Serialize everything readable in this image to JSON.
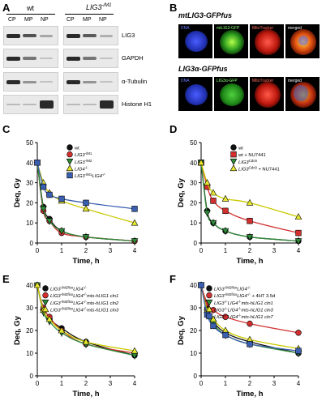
{
  "panelA": {
    "letter": "A",
    "group1": "wt",
    "group2": "LIG3",
    "group2_sup": "-/M1",
    "lanes": [
      "CP",
      "MP",
      "NP"
    ],
    "rows": [
      "LIG3",
      "GAPDH",
      "α-Tubulin",
      "Histone H1"
    ]
  },
  "panelB": {
    "letter": "B",
    "row1_title": "mtLIG3-GFPfus",
    "row2_title": "LIG3α-GFPfus",
    "row1_labels": [
      "DNA",
      "mtLIG3-GFP",
      "MitoTracker",
      "merged"
    ],
    "row2_labels": [
      "DNA",
      "LIG3α-GFP",
      "MitoTracker",
      "merged"
    ]
  },
  "axis_y_label": "Deq, Gy",
  "axis_x_label": "Time, h",
  "chart_data": [
    {
      "type": "line",
      "panel": "C",
      "ylim": [
        0,
        50
      ],
      "xlim": [
        0,
        4
      ],
      "xticks": [
        0,
        1,
        2,
        3,
        4
      ],
      "yticks": [
        0,
        10,
        20,
        30,
        40,
        50
      ],
      "series": [
        {
          "name": "wt",
          "color": "#111111",
          "marker": "circle",
          "x": [
            0,
            0.25,
            0.5,
            1,
            2,
            4
          ],
          "y": [
            40,
            18,
            12,
            6,
            3,
            1
          ]
        },
        {
          "name": "LIG3-/M1",
          "color": "#d32f2f",
          "marker": "circle",
          "x": [
            0,
            0.25,
            0.5,
            1,
            2,
            4
          ],
          "y": [
            40,
            16,
            11,
            5,
            3,
            1
          ]
        },
        {
          "name": "LIG3-/M2",
          "color": "#2e8b3a",
          "marker": "triangle-down",
          "x": [
            0,
            0.25,
            0.5,
            1,
            2,
            4
          ],
          "y": [
            40,
            17,
            11,
            6,
            3,
            1
          ]
        },
        {
          "name": "LIG4-/-",
          "color": "#e8e830",
          "marker": "triangle-up",
          "x": [
            0,
            0.25,
            0.5,
            1,
            2,
            4
          ],
          "y": [
            40,
            30,
            25,
            21,
            17,
            10
          ]
        },
        {
          "name": "LIG3-/M1LIG4-/-",
          "color": "#3b5fb0",
          "marker": "square",
          "x": [
            0,
            0.25,
            0.5,
            1,
            2,
            4
          ],
          "y": [
            40,
            28,
            24,
            22,
            20,
            17
          ]
        }
      ]
    },
    {
      "type": "line",
      "panel": "D",
      "ylim": [
        0,
        50
      ],
      "xlim": [
        0,
        4
      ],
      "xticks": [
        0,
        1,
        2,
        3,
        4
      ],
      "yticks": [
        0,
        10,
        20,
        30,
        40,
        50
      ],
      "series": [
        {
          "name": "wt",
          "color": "#111111",
          "marker": "circle",
          "x": [
            0,
            0.25,
            0.5,
            1,
            2,
            4
          ],
          "y": [
            40,
            16,
            10,
            6,
            3,
            1
          ]
        },
        {
          "name": "wt + NU7441",
          "color": "#d32f2f",
          "marker": "square",
          "x": [
            0,
            0.25,
            0.5,
            1,
            2,
            4
          ],
          "y": [
            40,
            28,
            21,
            16,
            11,
            5
          ]
        },
        {
          "name": "LIG3Cdc9",
          "color": "#2e8b3a",
          "marker": "triangle-down",
          "x": [
            0,
            0.25,
            0.5,
            1,
            2,
            4
          ],
          "y": [
            40,
            15,
            10,
            6,
            3,
            1
          ]
        },
        {
          "name": "LIG3Cdc9 + NU7441",
          "color": "#e8e830",
          "marker": "triangle-up",
          "x": [
            0,
            0.25,
            0.5,
            1,
            2,
            4
          ],
          "y": [
            40,
            30,
            25,
            22,
            20,
            13
          ]
        }
      ]
    },
    {
      "type": "line",
      "panel": "E",
      "ylim": [
        0,
        40
      ],
      "xlim": [
        0,
        4
      ],
      "xticks": [
        0,
        1,
        2,
        3,
        4
      ],
      "yticks": [
        0,
        10,
        20,
        30,
        40
      ],
      "series": [
        {
          "name": "LIG3-/M2flox LIG4-/-",
          "color": "#111111",
          "marker": "circle",
          "x": [
            0,
            0.25,
            0.5,
            1,
            2,
            4
          ],
          "y": [
            40,
            29,
            25,
            21,
            15,
            9
          ]
        },
        {
          "name": "LIG3-/M2flox LIG4-/- mts-hLIG1 cln1",
          "color": "#d32f2f",
          "marker": "circle",
          "x": [
            0,
            0.25,
            0.5,
            1,
            2,
            4
          ],
          "y": [
            40,
            30,
            26,
            20,
            14,
            10
          ]
        },
        {
          "name": "LIG3-/M2flox LIG4-/- mts-hLIG1 cln2",
          "color": "#2e8b3a",
          "marker": "triangle-down",
          "x": [
            0,
            0.25,
            0.5,
            1,
            2,
            4
          ],
          "y": [
            40,
            28,
            24,
            19,
            14,
            9
          ]
        },
        {
          "name": "LIG3-/M2flox LIG4-/- mts-hLIG1 cln3",
          "color": "#e8e830",
          "marker": "triangle-up",
          "x": [
            0,
            0.25,
            0.5,
            1,
            2,
            4
          ],
          "y": [
            40,
            29,
            25,
            20,
            15,
            11
          ]
        }
      ]
    },
    {
      "type": "line",
      "panel": "F",
      "ylim": [
        0,
        40
      ],
      "xlim": [
        0,
        4
      ],
      "xticks": [
        0,
        1,
        2,
        3,
        4
      ],
      "yticks": [
        0,
        10,
        20,
        30,
        40
      ],
      "series": [
        {
          "name": "LIG3-/M2flox LIG4-/-",
          "color": "#111111",
          "marker": "circle",
          "x": [
            0,
            0.25,
            0.5,
            1,
            2,
            4
          ],
          "y": [
            40,
            30,
            24,
            19,
            15,
            10
          ]
        },
        {
          "name": "LIG3-/M2flox LIG4-/- + 4HT 3.5d",
          "color": "#d32f2f",
          "marker": "circle",
          "x": [
            0,
            0.25,
            0.5,
            1,
            2,
            4
          ],
          "y": [
            40,
            32,
            29,
            26,
            23,
            19
          ]
        },
        {
          "name": "LIG3-/- LIG4-/- mts-hLIG1 cln1",
          "color": "#2e8b3a",
          "marker": "triangle-down",
          "x": [
            0,
            0.25,
            0.5,
            1,
            2,
            4
          ],
          "y": [
            40,
            28,
            23,
            18,
            14,
            10
          ]
        },
        {
          "name": "LIG3-/- LIG4-/- mts-hLIG1 cln3",
          "color": "#e8e830",
          "marker": "triangle-up",
          "x": [
            0,
            0.25,
            0.5,
            1,
            2,
            4
          ],
          "y": [
            40,
            29,
            25,
            20,
            16,
            12
          ]
        },
        {
          "name": "LIG3-/- LIG4-/- mts-hLIG1 cln7",
          "color": "#3b5fb0",
          "marker": "square",
          "x": [
            0,
            0.25,
            0.5,
            1,
            2,
            4
          ],
          "y": [
            40,
            27,
            22,
            18,
            14,
            11
          ]
        }
      ]
    }
  ]
}
